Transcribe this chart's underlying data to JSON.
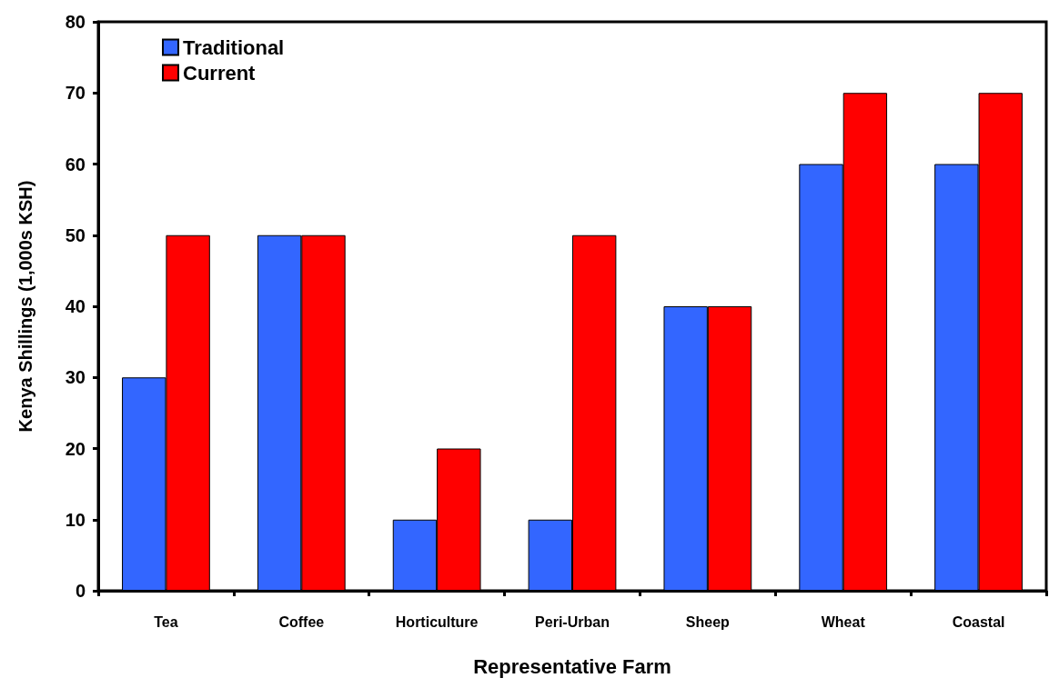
{
  "chart_data": {
    "type": "bar",
    "xlabel": "Representative Farm",
    "ylabel": "Kenya Shillings (1,000s KSH)",
    "categories": [
      "Tea",
      "Coffee",
      "Horticulture",
      "Peri-Urban",
      "Sheep",
      "Wheat",
      "Coastal"
    ],
    "series": [
      {
        "name": "Traditional",
        "color": "#3366ff",
        "values": [
          30,
          50,
          10,
          10,
          40,
          60,
          60
        ]
      },
      {
        "name": "Current",
        "color": "#ff0000",
        "values": [
          50,
          50,
          20,
          50,
          40,
          70,
          70
        ]
      }
    ],
    "ylim": [
      0,
      80
    ],
    "yticks": [
      0,
      10,
      20,
      30,
      40,
      50,
      60,
      70,
      80
    ],
    "grid": false,
    "legend": "top left"
  }
}
